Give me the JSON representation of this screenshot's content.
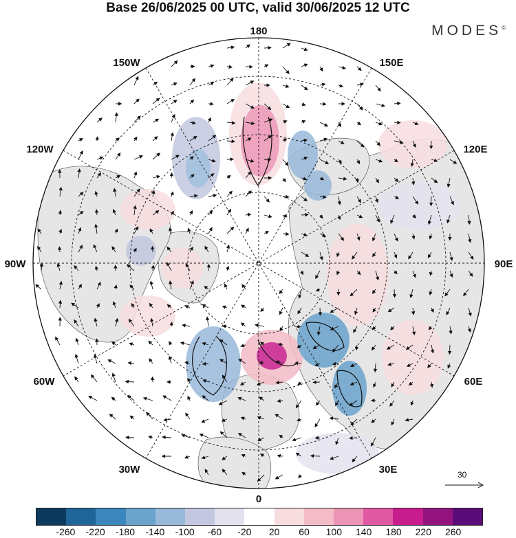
{
  "header": {
    "title": "Base 26/06/2025 00 UTC, valid 30/06/2025 12 UTC",
    "brand": "MODES",
    "brand_mark": "©"
  },
  "map": {
    "projection": "north-polar-stereographic",
    "longitude_labels": {
      "top": "180",
      "top_left": "150W",
      "top_right": "150E",
      "upper_left": "120W",
      "upper_right": "120E",
      "left": "90W",
      "right": "90E",
      "lower_left": "60W",
      "lower_right": "60E",
      "bottom_left": "30W",
      "bottom_right": "30E",
      "bottom": "0"
    },
    "land_color": "#e6e6e6",
    "ocean_color": "#ffffff",
    "vector_scale_label": "30"
  },
  "colorbar": {
    "colors": [
      "#0d3a5c",
      "#1f6698",
      "#3a86bd",
      "#6aa3cc",
      "#98b9da",
      "#c3c8e0",
      "#e4e2ef",
      "#ffffff",
      "#f7dde0",
      "#f3bcc6",
      "#ec94b5",
      "#e05aa3",
      "#c81d8c",
      "#93137f",
      "#5a0d78"
    ],
    "tick_labels": [
      "-260",
      "-220",
      "-180",
      "-140",
      "-100",
      "-60",
      "-20",
      "20",
      "60",
      "100",
      "140",
      "180",
      "220",
      "260"
    ]
  }
}
